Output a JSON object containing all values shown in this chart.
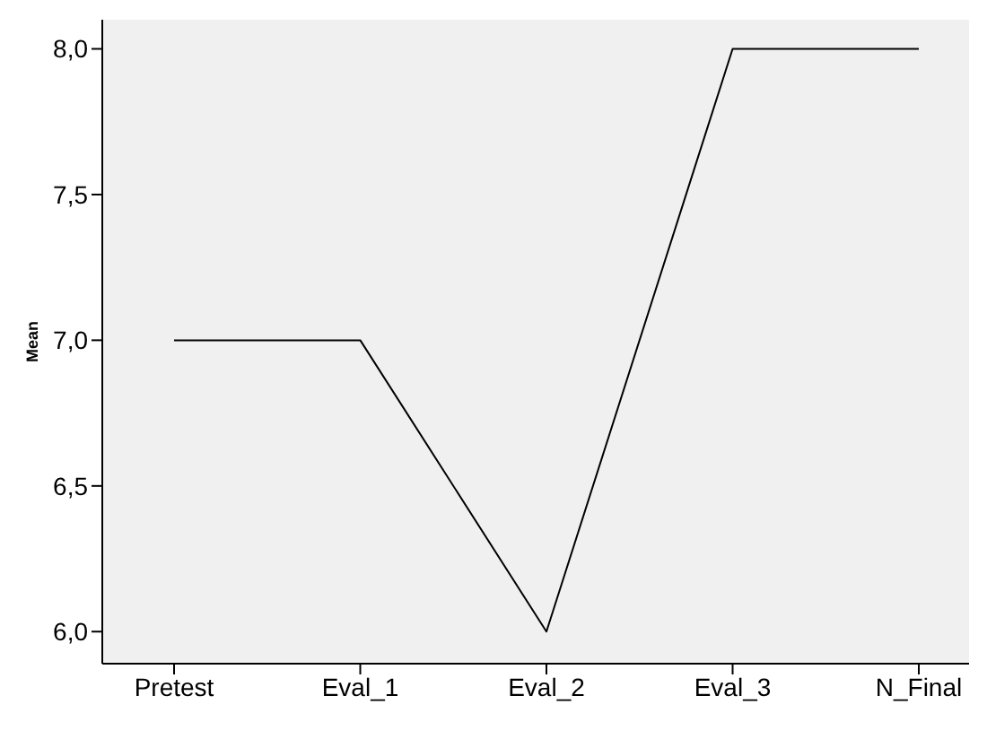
{
  "chart_data": {
    "type": "line",
    "ylabel": "Mean",
    "categories": [
      "Pretest",
      "Eval_1",
      "Eval_2",
      "Eval_3",
      "N_Final"
    ],
    "series": [
      {
        "color": "#000000",
        "values": [
          7,
          7,
          6,
          8,
          8
        ]
      }
    ],
    "ylim": [
      5.89,
      8.1
    ],
    "yticks": [
      {
        "value": 6,
        "label": "6,0"
      },
      {
        "value": 6.5,
        "label": "6,5"
      },
      {
        "value": 7,
        "label": "7,0"
      },
      {
        "value": 7.5,
        "label": "7,5"
      },
      {
        "value": 8,
        "label": "8,0"
      }
    ],
    "grid": false,
    "marker": "none"
  }
}
